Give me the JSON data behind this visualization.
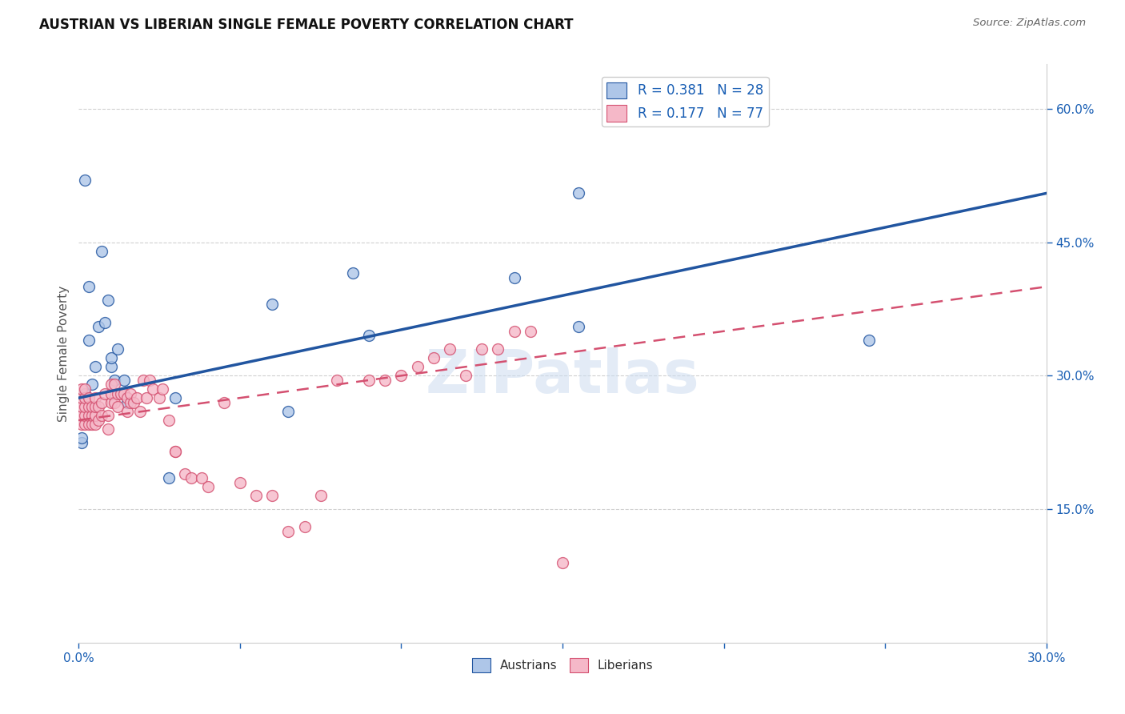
{
  "title": "AUSTRIAN VS LIBERIAN SINGLE FEMALE POVERTY CORRELATION CHART",
  "source": "Source: ZipAtlas.com",
  "ylabel_label": "Single Female Poverty",
  "xlim": [
    0.0,
    0.3
  ],
  "ylim": [
    0.0,
    0.65
  ],
  "xtick_labels": [
    "0.0%",
    "",
    "",
    "",
    "",
    "",
    "30.0%"
  ],
  "xtick_vals": [
    0.0,
    0.05,
    0.1,
    0.15,
    0.2,
    0.25,
    0.3
  ],
  "ytick_labels": [
    "15.0%",
    "30.0%",
    "45.0%",
    "60.0%"
  ],
  "ytick_vals": [
    0.15,
    0.3,
    0.45,
    0.6
  ],
  "austrians_R": 0.381,
  "austrians_N": 28,
  "liberians_R": 0.177,
  "liberians_N": 77,
  "scatter_color_austrians": "#aec6e8",
  "scatter_color_liberians": "#f5b8c8",
  "line_color_austrians": "#2155a0",
  "line_color_liberians": "#d45070",
  "watermark": "ZIPatlas",
  "austrians_x": [
    0.001,
    0.001,
    0.002,
    0.002,
    0.003,
    0.003,
    0.004,
    0.005,
    0.006,
    0.007,
    0.008,
    0.009,
    0.01,
    0.01,
    0.011,
    0.012,
    0.014,
    0.015,
    0.028,
    0.03,
    0.06,
    0.065,
    0.085,
    0.09,
    0.135,
    0.155,
    0.155,
    0.245
  ],
  "austrians_y": [
    0.225,
    0.23,
    0.28,
    0.52,
    0.34,
    0.4,
    0.29,
    0.31,
    0.355,
    0.44,
    0.36,
    0.385,
    0.31,
    0.32,
    0.295,
    0.33,
    0.295,
    0.27,
    0.185,
    0.275,
    0.38,
    0.26,
    0.415,
    0.345,
    0.41,
    0.505,
    0.355,
    0.34
  ],
  "liberians_x": [
    0.001,
    0.001,
    0.001,
    0.001,
    0.001,
    0.002,
    0.002,
    0.002,
    0.002,
    0.002,
    0.003,
    0.003,
    0.003,
    0.003,
    0.004,
    0.004,
    0.004,
    0.005,
    0.005,
    0.005,
    0.005,
    0.006,
    0.006,
    0.007,
    0.007,
    0.008,
    0.009,
    0.009,
    0.01,
    0.01,
    0.01,
    0.011,
    0.011,
    0.012,
    0.012,
    0.013,
    0.014,
    0.015,
    0.015,
    0.016,
    0.016,
    0.017,
    0.018,
    0.019,
    0.02,
    0.021,
    0.022,
    0.023,
    0.025,
    0.026,
    0.028,
    0.03,
    0.03,
    0.033,
    0.035,
    0.038,
    0.04,
    0.045,
    0.05,
    0.055,
    0.06,
    0.065,
    0.07,
    0.075,
    0.08,
    0.09,
    0.095,
    0.1,
    0.105,
    0.11,
    0.115,
    0.12,
    0.125,
    0.13,
    0.135,
    0.14,
    0.15
  ],
  "liberians_y": [
    0.245,
    0.255,
    0.265,
    0.275,
    0.285,
    0.245,
    0.255,
    0.265,
    0.275,
    0.285,
    0.245,
    0.255,
    0.265,
    0.275,
    0.245,
    0.255,
    0.265,
    0.245,
    0.255,
    0.265,
    0.275,
    0.25,
    0.265,
    0.255,
    0.27,
    0.28,
    0.24,
    0.255,
    0.27,
    0.28,
    0.29,
    0.27,
    0.29,
    0.265,
    0.28,
    0.28,
    0.28,
    0.275,
    0.26,
    0.27,
    0.28,
    0.27,
    0.275,
    0.26,
    0.295,
    0.275,
    0.295,
    0.285,
    0.275,
    0.285,
    0.25,
    0.215,
    0.215,
    0.19,
    0.185,
    0.185,
    0.175,
    0.27,
    0.18,
    0.165,
    0.165,
    0.125,
    0.13,
    0.165,
    0.295,
    0.295,
    0.295,
    0.3,
    0.31,
    0.32,
    0.33,
    0.3,
    0.33,
    0.33,
    0.35,
    0.35,
    0.09
  ]
}
